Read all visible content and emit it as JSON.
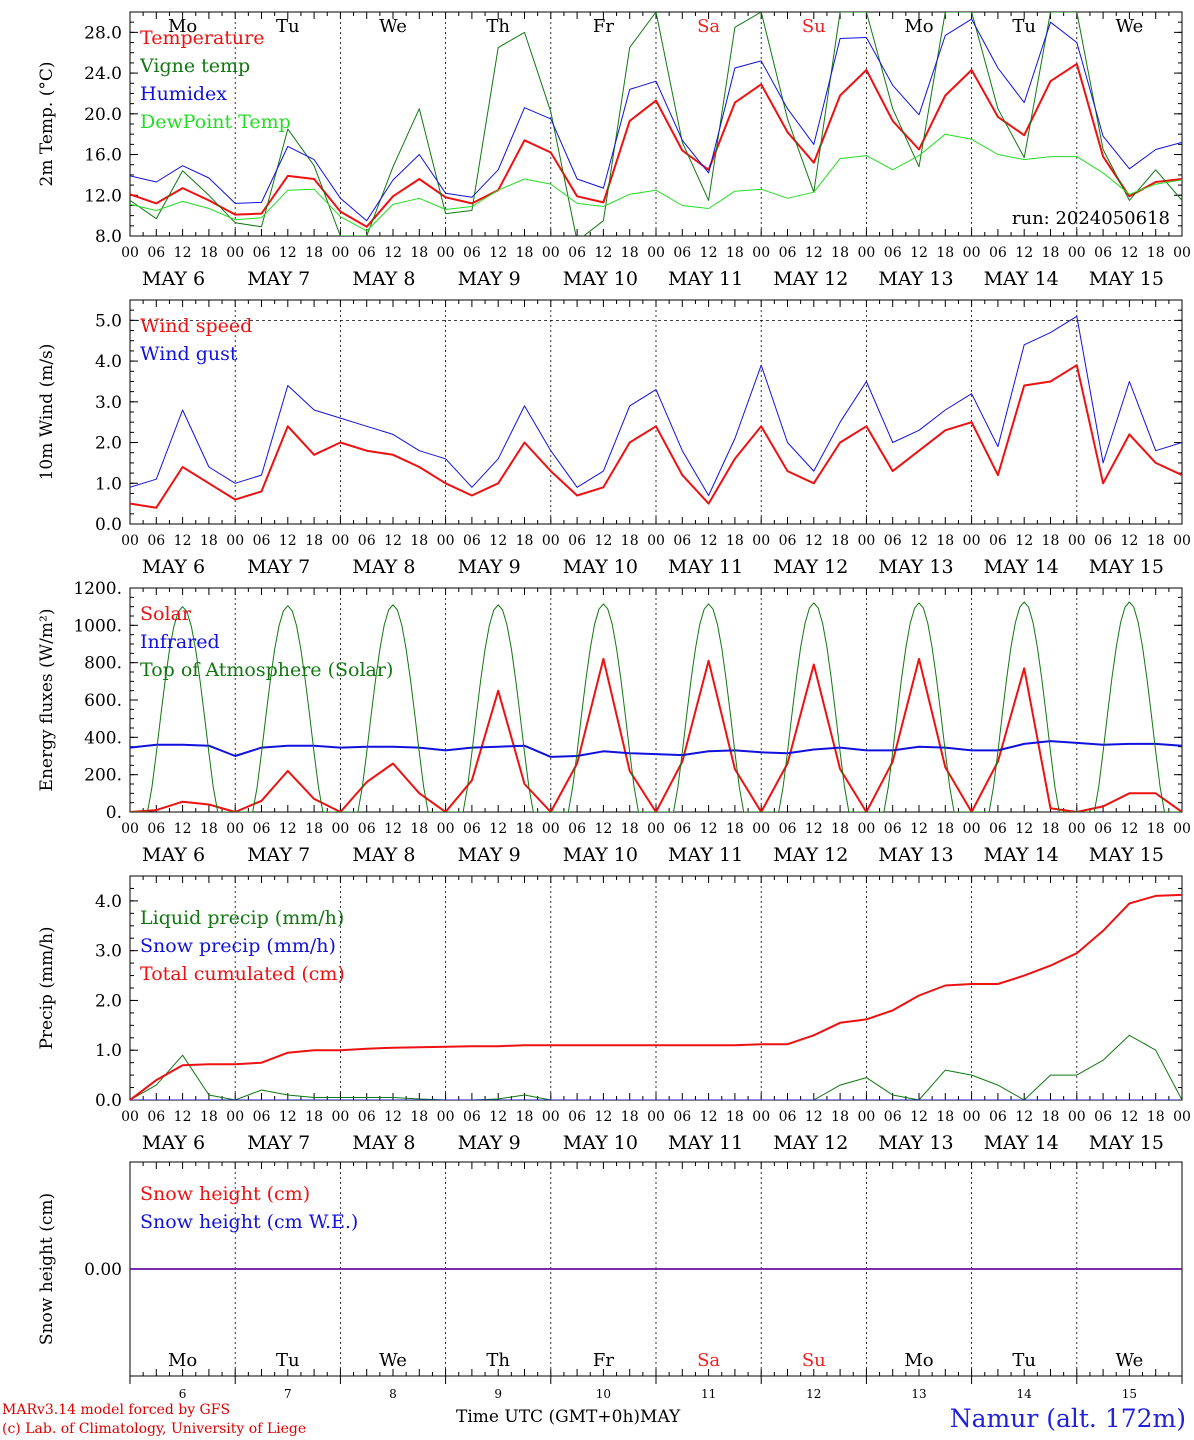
{
  "run_label": "run: 2024050618",
  "dates": [
    "MAY  6",
    "MAY  7",
    "MAY  8",
    "MAY  9",
    "MAY 10",
    "MAY 11",
    "MAY 12",
    "MAY 13",
    "MAY 14",
    "MAY 15"
  ],
  "hour_labels": [
    "00",
    "06",
    "12",
    "18"
  ],
  "final_hour_label": "00",
  "weekdays": [
    "Mo",
    "Tu",
    "We",
    "Th",
    "Fr",
    "Sa",
    "Su",
    "Mo",
    "Tu",
    "We"
  ],
  "weekday_colors": [
    "#000000",
    "#000000",
    "#000000",
    "#000000",
    "#000000",
    "#ee2222",
    "#ee2222",
    "#000000",
    "#000000",
    "#000000"
  ],
  "bottom_day_numbers": [
    "6",
    "7",
    "8",
    "9",
    "10",
    "11",
    "12",
    "13",
    "14",
    "15"
  ],
  "footer": {
    "credit_line1": "MARv3.14 model forced by GFS",
    "credit_line2": "(c) Lab. of Climatology, University of Liege",
    "time_axis_label": "Time UTC (GMT+0h)MAY",
    "station": "Namur (alt. 172m)"
  },
  "colors": {
    "red": "#ee1111",
    "blue": "#1111dd",
    "green": "#117711",
    "light_green": "#22dd22",
    "purple": "#7722aa"
  },
  "chart_data": [
    {
      "type": "line",
      "ylabel": "2m Temp. (°C)",
      "ylim": [
        8,
        30
      ],
      "yticks": [
        8,
        12,
        16,
        20,
        24,
        28
      ],
      "ytick_labels": [
        "8.0",
        "12.0",
        "16.0",
        "20.0",
        "24.0",
        "28.0"
      ],
      "legend_placement": "top-left",
      "x_hours": [
        0,
        6,
        12,
        18,
        24,
        30,
        36,
        42,
        48,
        54,
        60,
        66,
        72,
        78,
        84,
        90,
        96,
        102,
        108,
        114,
        120,
        126,
        132,
        138,
        144,
        150,
        156,
        162,
        168,
        174,
        180,
        186,
        192,
        198,
        204,
        210,
        216,
        222,
        228,
        234,
        240
      ],
      "series": [
        {
          "name": "Temperature",
          "color": "#ee1111",
          "width": 2,
          "values": [
            12.1,
            11.2,
            12.7,
            11.5,
            10.1,
            10.2,
            13.9,
            13.6,
            10.4,
            8.9,
            11.9,
            13.6,
            11.8,
            11.2,
            12.5,
            17.4,
            16.2,
            11.9,
            11.3,
            19.3,
            21.3,
            16.4,
            14.5,
            21.1,
            22.9,
            18.2,
            15.2,
            21.8,
            24.3,
            19.3,
            16.5,
            21.8,
            24.3,
            19.7,
            17.9,
            23.2,
            24.9,
            15.8,
            11.9,
            13.3,
            13.6
          ]
        },
        {
          "name": "Vigne temp",
          "color": "#117711",
          "width": 1,
          "values": [
            11.5,
            9.7,
            14.4,
            12.0,
            9.3,
            8.9,
            18.5,
            14.9,
            8.0,
            8.0,
            14.8,
            20.5,
            10.2,
            10.5,
            26.5,
            28.0,
            20.2,
            7.5,
            9.5,
            26.5,
            30.0,
            17.2,
            11.5,
            28.5,
            30.0,
            19.5,
            12.3,
            30.0,
            30.0,
            20.5,
            14.8,
            30.0,
            30.0,
            20.5,
            15.7,
            30.0,
            30.0,
            16.5,
            11.5,
            14.5,
            11.5
          ]
        },
        {
          "name": "Humidex",
          "color": "#1111dd",
          "width": 1,
          "values": [
            13.9,
            13.3,
            14.9,
            13.7,
            11.2,
            11.3,
            16.8,
            15.5,
            11.7,
            9.5,
            13.5,
            16.0,
            12.2,
            11.8,
            14.5,
            20.6,
            19.5,
            13.6,
            12.7,
            22.4,
            23.2,
            17.4,
            14.2,
            24.5,
            25.2,
            20.5,
            17.0,
            27.4,
            27.5,
            22.8,
            19.9,
            27.7,
            29.3,
            24.5,
            21.1,
            29.0,
            27.0,
            17.8,
            14.6,
            16.5,
            17.2
          ]
        },
        {
          "name": "DewPoint Temp",
          "color": "#22dd22",
          "width": 1,
          "values": [
            11.1,
            10.5,
            11.4,
            10.7,
            9.6,
            9.8,
            12.5,
            12.6,
            9.9,
            8.5,
            11.1,
            11.7,
            10.6,
            10.9,
            12.5,
            13.6,
            13.1,
            11.2,
            10.9,
            12.1,
            12.5,
            11.0,
            10.7,
            12.4,
            12.6,
            11.7,
            12.3,
            15.6,
            15.9,
            14.5,
            15.9,
            18.0,
            17.5,
            16.0,
            15.5,
            15.8,
            15.8,
            14.2,
            12.1,
            13.1,
            13.5
          ]
        }
      ]
    },
    {
      "type": "line",
      "ylabel": "10m Wind (m/s)",
      "ylim": [
        0,
        5.5
      ],
      "yticks": [
        0,
        1,
        2,
        3,
        4,
        5
      ],
      "ytick_labels": [
        "0.0",
        "1.0",
        "2.0",
        "3.0",
        "4.0",
        "5.0"
      ],
      "ref_lines": [
        5.0
      ],
      "legend_placement": "top-left",
      "x_hours": [
        0,
        6,
        12,
        18,
        24,
        30,
        36,
        42,
        48,
        54,
        60,
        66,
        72,
        78,
        84,
        90,
        96,
        102,
        108,
        114,
        120,
        126,
        132,
        138,
        144,
        150,
        156,
        162,
        168,
        174,
        180,
        186,
        192,
        198,
        204,
        210,
        216,
        222,
        228,
        234,
        240
      ],
      "series": [
        {
          "name": "Wind speed",
          "color": "#ee1111",
          "width": 2,
          "values": [
            0.5,
            0.4,
            1.4,
            1.0,
            0.6,
            0.8,
            2.4,
            1.7,
            2.0,
            1.8,
            1.7,
            1.4,
            1.0,
            0.7,
            1.0,
            2.0,
            1.3,
            0.7,
            0.9,
            2.0,
            2.4,
            1.2,
            0.5,
            1.6,
            2.4,
            1.3,
            1.0,
            2.0,
            2.4,
            1.3,
            1.8,
            2.3,
            2.5,
            1.2,
            3.4,
            3.5,
            3.9,
            1.0,
            2.2,
            1.5,
            1.2
          ]
        },
        {
          "name": "Wind gust",
          "color": "#1111dd",
          "width": 1,
          "values": [
            0.9,
            1.1,
            2.8,
            1.4,
            1.0,
            1.2,
            3.4,
            2.8,
            2.6,
            2.4,
            2.2,
            1.8,
            1.6,
            0.9,
            1.6,
            2.9,
            1.8,
            0.9,
            1.3,
            2.9,
            3.3,
            1.8,
            0.7,
            2.1,
            3.9,
            2.0,
            1.3,
            2.5,
            3.5,
            2.0,
            2.3,
            2.8,
            3.2,
            1.9,
            4.4,
            4.7,
            5.1,
            1.5,
            3.5,
            1.8,
            2.0
          ]
        }
      ]
    },
    {
      "type": "line",
      "ylabel": "Energy fluxes (W/m²)",
      "ylim": [
        0,
        1200
      ],
      "yticks": [
        0,
        200,
        400,
        600,
        800,
        1000,
        1200
      ],
      "ytick_labels": [
        "0.",
        "200.",
        "400.",
        "600.",
        "800.",
        "1000.",
        "1200."
      ],
      "legend_placement": "top-left",
      "x_hours": [
        0,
        6,
        12,
        18,
        24,
        30,
        36,
        42,
        48,
        54,
        60,
        66,
        72,
        78,
        84,
        90,
        96,
        102,
        108,
        114,
        120,
        126,
        132,
        138,
        144,
        150,
        156,
        162,
        168,
        174,
        180,
        186,
        192,
        198,
        204,
        210,
        216,
        222,
        228,
        234,
        240
      ],
      "series": [
        {
          "name": "Solar",
          "color": "#ee1111",
          "width": 2,
          "values": [
            0,
            10,
            55,
            40,
            0,
            60,
            220,
            70,
            0,
            160,
            260,
            100,
            0,
            170,
            650,
            150,
            0,
            260,
            820,
            220,
            0,
            270,
            810,
            230,
            0,
            260,
            790,
            230,
            0,
            270,
            820,
            240,
            0,
            270,
            770,
            20,
            0,
            30,
            100,
            100,
            0
          ]
        },
        {
          "name": "Infrared",
          "color": "#1111dd",
          "width": 2,
          "values": [
            345,
            360,
            360,
            355,
            300,
            345,
            355,
            355,
            345,
            350,
            350,
            345,
            330,
            345,
            350,
            355,
            295,
            300,
            325,
            315,
            310,
            305,
            325,
            330,
            320,
            315,
            335,
            345,
            330,
            330,
            350,
            345,
            330,
            330,
            365,
            380,
            370,
            360,
            365,
            365,
            355
          ]
        },
        {
          "name": "Top of Atmosphere (Solar)",
          "color": "#117711",
          "width": 1,
          "daily_peak": [
            1100,
            1105,
            1110,
            1110,
            1115,
            1115,
            1120,
            1120,
            1125,
            1125
          ]
        }
      ]
    },
    {
      "type": "line",
      "ylabel": "Precip (mm/h)",
      "ylim": [
        0,
        4.5
      ],
      "yticks": [
        0,
        1,
        2,
        3,
        4
      ],
      "ytick_labels": [
        "0.0",
        "1.0",
        "2.0",
        "3.0",
        "4.0"
      ],
      "legend_placement": "top-left",
      "x_hours": [
        0,
        6,
        12,
        18,
        24,
        30,
        36,
        42,
        48,
        54,
        60,
        66,
        72,
        78,
        84,
        90,
        96,
        102,
        108,
        114,
        120,
        126,
        132,
        138,
        144,
        150,
        156,
        162,
        168,
        174,
        180,
        186,
        192,
        198,
        204,
        210,
        216,
        222,
        228,
        234,
        240
      ],
      "series": [
        {
          "name": "Liquid precip (mm/h)",
          "color": "#117711",
          "width": 1,
          "values": [
            0,
            0.3,
            0.9,
            0.1,
            0,
            0.2,
            0.1,
            0.05,
            0.05,
            0.05,
            0.05,
            0.02,
            0,
            0,
            0.02,
            0.1,
            0,
            0,
            0,
            0,
            0,
            0,
            0,
            0,
            0,
            0,
            0,
            0.3,
            0.45,
            0.1,
            0,
            0.6,
            0.5,
            0.3,
            0,
            0.5,
            0.5,
            0.8,
            1.3,
            1.0,
            0
          ]
        },
        {
          "name": "Snow precip (mm/h)",
          "color": "#1111dd",
          "width": 1,
          "values": [
            0,
            0,
            0,
            0,
            0,
            0,
            0,
            0,
            0,
            0,
            0,
            0,
            0,
            0,
            0,
            0,
            0,
            0,
            0,
            0,
            0,
            0,
            0,
            0,
            0,
            0,
            0,
            0,
            0,
            0,
            0,
            0,
            0,
            0,
            0,
            0,
            0,
            0,
            0,
            0,
            0
          ]
        },
        {
          "name": "Total cumulated (cm)",
          "color": "#ee1111",
          "width": 2,
          "values": [
            0,
            0.4,
            0.7,
            0.72,
            0.72,
            0.75,
            0.95,
            1.0,
            1.0,
            1.03,
            1.05,
            1.06,
            1.07,
            1.08,
            1.08,
            1.1,
            1.1,
            1.1,
            1.1,
            1.1,
            1.1,
            1.1,
            1.1,
            1.1,
            1.12,
            1.12,
            1.3,
            1.55,
            1.62,
            1.8,
            2.1,
            2.3,
            2.33,
            2.33,
            2.5,
            2.7,
            2.95,
            3.4,
            3.95,
            4.1,
            4.12
          ]
        }
      ]
    },
    {
      "type": "line",
      "ylabel": "Snow height (cm)",
      "ylim": [
        -1,
        1
      ],
      "yticks": [
        0
      ],
      "ytick_labels": [
        "0.00"
      ],
      "legend_placement": "top-left",
      "series": [
        {
          "name": "Snow height (cm)",
          "color": "#ee1111",
          "values": [
            0,
            0
          ]
        },
        {
          "name": "Snow height (cm W.E.)",
          "color": "#1111dd",
          "values": [
            0,
            0
          ]
        }
      ]
    }
  ]
}
